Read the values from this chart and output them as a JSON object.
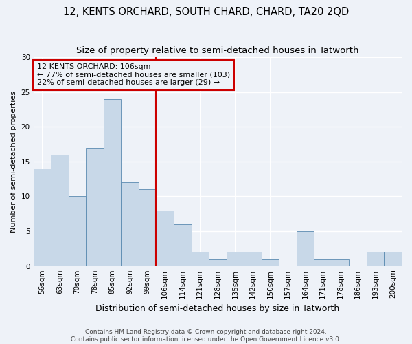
{
  "title": "12, KENTS ORCHARD, SOUTH CHARD, CHARD, TA20 2QD",
  "subtitle": "Size of property relative to semi-detached houses in Tatworth",
  "xlabel": "Distribution of semi-detached houses by size in Tatworth",
  "ylabel": "Number of semi-detached properties",
  "categories": [
    "56sqm",
    "63sqm",
    "70sqm",
    "78sqm",
    "85sqm",
    "92sqm",
    "99sqm",
    "106sqm",
    "114sqm",
    "121sqm",
    "128sqm",
    "135sqm",
    "142sqm",
    "150sqm",
    "157sqm",
    "164sqm",
    "171sqm",
    "178sqm",
    "186sqm",
    "193sqm",
    "200sqm"
  ],
  "values": [
    14,
    16,
    10,
    17,
    24,
    12,
    11,
    8,
    6,
    2,
    1,
    2,
    2,
    1,
    0,
    5,
    1,
    1,
    0,
    2,
    2
  ],
  "bar_color": "#c8d8e8",
  "bar_edge_color": "#5a8ab0",
  "subject_bar_index": 7,
  "subject_line_color": "#cc0000",
  "annotation_line1": "12 KENTS ORCHARD: 106sqm",
  "annotation_line2": "← 77% of semi-detached houses are smaller (103)",
  "annotation_line3": "22% of semi-detached houses are larger (29) →",
  "annotation_box_color": "#cc0000",
  "ylim": [
    0,
    30
  ],
  "yticks": [
    0,
    5,
    10,
    15,
    20,
    25,
    30
  ],
  "footer_line1": "Contains HM Land Registry data © Crown copyright and database right 2024.",
  "footer_line2": "Contains public sector information licensed under the Open Government Licence v3.0.",
  "background_color": "#eef2f8",
  "grid_color": "#ffffff",
  "title_fontsize": 10.5,
  "subtitle_fontsize": 9.5,
  "xlabel_fontsize": 9,
  "ylabel_fontsize": 8,
  "tick_fontsize": 7.5,
  "annotation_fontsize": 8,
  "footer_fontsize": 6.5
}
